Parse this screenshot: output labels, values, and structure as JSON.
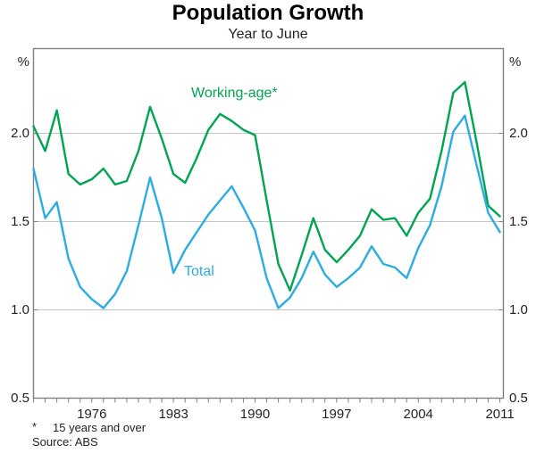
{
  "title": "Population Growth",
  "subtitle": "Year to June",
  "units": {
    "left": "%",
    "right": "%"
  },
  "series_labels": {
    "working_age": "Working-age*",
    "total": "Total"
  },
  "footnote": {
    "marker": "*",
    "text": "15 years and over",
    "source": "Source: ABS"
  },
  "colors": {
    "working_age_line": "#00a551",
    "total_line": "#2bace2",
    "border": "#7f8080",
    "gridline": "#c4c4c4",
    "text": "#231f20"
  },
  "chart_data": {
    "type": "line",
    "title": "Population Growth",
    "subtitle": "Year to June",
    "xlabel": "",
    "ylabel": "%",
    "xlim": [
      1971,
      2011.3
    ],
    "ylim": [
      0.5,
      2.48
    ],
    "grid": "horizontal",
    "grid_values": [
      1.0,
      1.5,
      2.0
    ],
    "y_tick_values": [
      2.0,
      1.5,
      1.0,
      0.5
    ],
    "y_tick_labels": [
      "2.0",
      "1.5",
      "1.0",
      "0.5"
    ],
    "x_label_years": [
      1976,
      1983,
      1990,
      1997,
      2004,
      2011
    ],
    "x_tick_labels": [
      "1976",
      "1983",
      "1990",
      "1997",
      "2004",
      "2011"
    ],
    "x": [
      1971,
      1972,
      1973,
      1974,
      1975,
      1976,
      1977,
      1978,
      1979,
      1980,
      1981,
      1982,
      1983,
      1984,
      1985,
      1986,
      1987,
      1988,
      1989,
      1990,
      1991,
      1992,
      1993,
      1994,
      1995,
      1996,
      1997,
      1998,
      1999,
      2000,
      2001,
      2002,
      2003,
      2004,
      2005,
      2006,
      2007,
      2008,
      2009,
      2010,
      2011
    ],
    "series": [
      {
        "name": "Working-age*",
        "color_key": "working_age_line",
        "values": [
          2.04,
          1.9,
          2.13,
          1.77,
          1.71,
          1.74,
          1.8,
          1.71,
          1.73,
          1.9,
          2.15,
          1.97,
          1.77,
          1.72,
          1.86,
          2.02,
          2.11,
          2.07,
          2.02,
          1.99,
          1.62,
          1.26,
          1.11,
          1.31,
          1.52,
          1.34,
          1.27,
          1.34,
          1.42,
          1.57,
          1.51,
          1.52,
          1.42,
          1.55,
          1.63,
          1.9,
          2.23,
          2.29,
          1.95,
          1.59,
          1.53
        ]
      },
      {
        "name": "Total",
        "color_key": "total_line",
        "values": [
          1.8,
          1.52,
          1.61,
          1.29,
          1.13,
          1.06,
          1.01,
          1.09,
          1.22,
          1.48,
          1.75,
          1.52,
          1.21,
          1.34,
          1.44,
          1.54,
          1.62,
          1.7,
          1.58,
          1.45,
          1.18,
          1.01,
          1.07,
          1.18,
          1.33,
          1.2,
          1.13,
          1.18,
          1.24,
          1.36,
          1.26,
          1.24,
          1.18,
          1.35,
          1.48,
          1.7,
          2.01,
          2.1,
          1.82,
          1.55,
          1.44
        ]
      }
    ]
  }
}
